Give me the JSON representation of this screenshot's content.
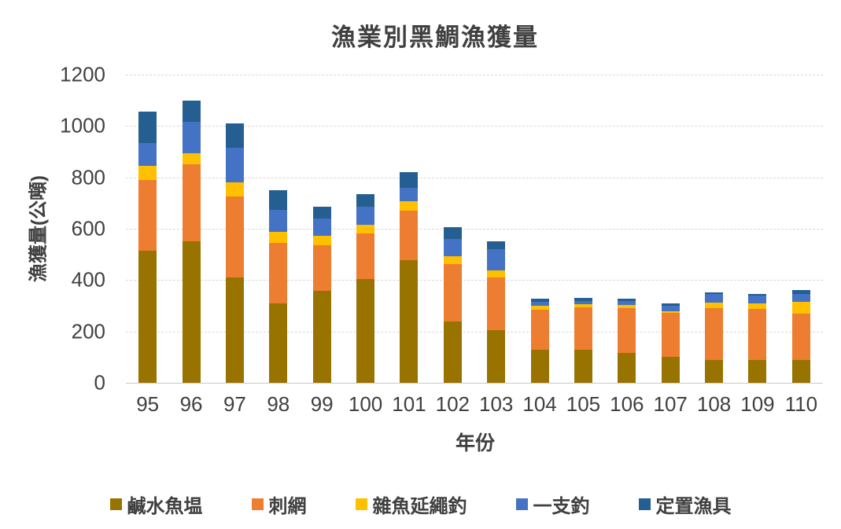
{
  "chart_data": {
    "type": "bar",
    "stacked": true,
    "title": "漁業別黑鯛漁獲量",
    "xlabel": "年份",
    "ylabel": "漁獲量(公噸)",
    "ylim": [
      0,
      1200
    ],
    "ytick_step": 200,
    "ytick_labels": [
      "0",
      "200",
      "400",
      "600",
      "800",
      "1000",
      "1200"
    ],
    "grid": "horizontal-dashed",
    "legend_position": "bottom",
    "categories": [
      "95",
      "96",
      "97",
      "98",
      "99",
      "100",
      "101",
      "102",
      "103",
      "104",
      "105",
      "106",
      "107",
      "108",
      "109",
      "110"
    ],
    "series": [
      {
        "name": "鹹水魚塭",
        "color": "#997300",
        "values": [
          515,
          550,
          410,
          310,
          357,
          403,
          478,
          240,
          204,
          128,
          130,
          115,
          100,
          90,
          88,
          88
        ]
      },
      {
        "name": "刺網",
        "color": "#ED7D31",
        "values": [
          275,
          300,
          315,
          235,
          180,
          179,
          193,
          222,
          206,
          158,
          163,
          176,
          171,
          201,
          201,
          183
        ]
      },
      {
        "name": "雜魚延繩釣",
        "color": "#FFC000",
        "values": [
          55,
          45,
          55,
          42,
          37,
          34,
          36,
          31,
          29,
          13,
          13,
          12,
          8,
          20,
          19,
          44
        ]
      },
      {
        "name": "一支釣",
        "color": "#4472C4",
        "values": [
          90,
          120,
          135,
          87,
          67,
          70,
          53,
          67,
          82,
          17,
          14,
          15,
          22,
          34,
          32,
          31
        ]
      },
      {
        "name": "定置漁具",
        "color": "#255E91",
        "values": [
          120,
          85,
          95,
          76,
          46,
          49,
          60,
          46,
          31,
          12,
          12,
          11,
          8,
          7,
          6,
          14
        ]
      }
    ]
  },
  "colors": {
    "text": "#404040",
    "gridline": "#D9D9D9",
    "axis_line": "#C9C9C9",
    "background": "#FFFFFF"
  }
}
